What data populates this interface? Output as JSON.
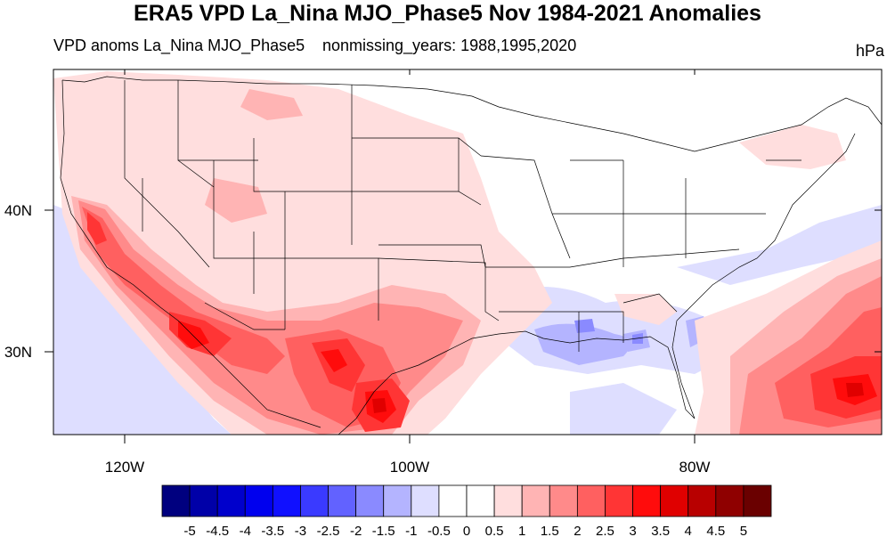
{
  "title": "ERA5 VPD La_Nina MJO_Phase5 Nov 1984-2021 Anomalies",
  "subtitle_left": "VPD anoms La_Nina MJO_Phase5",
  "subtitle_center": "nonmissing_years: 1988,1995,2020",
  "units": "hPa",
  "map": {
    "lon_ticks": [
      "120W",
      "100W",
      "80W"
    ],
    "lat_ticks": [
      "40N",
      "30N"
    ],
    "lon_range": [
      -125,
      -65
    ],
    "lat_range": [
      24,
      50
    ]
  },
  "colorbar": {
    "labels": [
      "-5",
      "-4.5",
      "-4",
      "-3.5",
      "-3",
      "-2.5",
      "-2",
      "-1.5",
      "-1",
      "-0.5",
      "0",
      "0.5",
      "1",
      "1.5",
      "2",
      "2.5",
      "3",
      "3.5",
      "4",
      "4.5",
      "5"
    ],
    "colors": [
      "#00007f",
      "#0000a8",
      "#0000cc",
      "#0000ee",
      "#1010ff",
      "#3a3aff",
      "#6262ff",
      "#8a8aff",
      "#b4b4ff",
      "#dedeff",
      "#ffffff",
      "#ffffff",
      "#ffdede",
      "#ffb4b4",
      "#ff8a8a",
      "#ff6060",
      "#ff3535",
      "#ff0c0c",
      "#e00000",
      "#b80000",
      "#8f0000",
      "#6a0000"
    ]
  }
}
